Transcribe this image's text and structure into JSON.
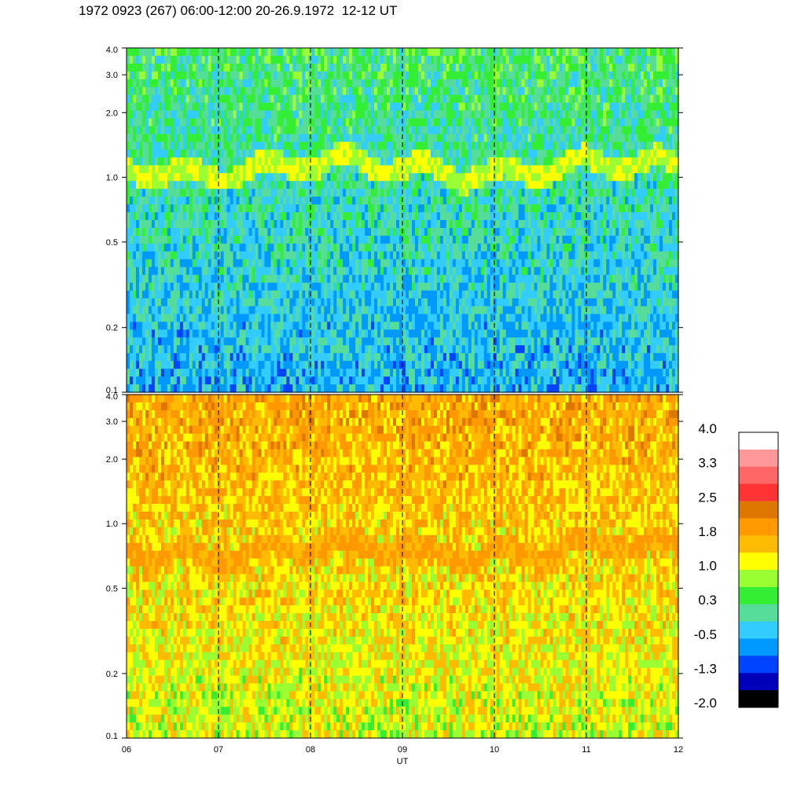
{
  "title": "1972 0923 (267) 06:00-12:00 20-26.9.1972  12-12 UT",
  "chart_data": [
    {
      "type": "heatmap",
      "name": "upper-panel",
      "x_range": [
        "06",
        "12"
      ],
      "y_scale": "log",
      "y_range": [
        0.1,
        4.0
      ],
      "y_ticks": [
        "4.0",
        "3.0",
        "2.0",
        "1.0",
        "0.5",
        "0.2",
        "0.1"
      ],
      "x_ticks": [
        "06",
        "07",
        "08",
        "09",
        "10",
        "11",
        "12"
      ],
      "xlabel": "",
      "dashed_lines_at": [
        "07",
        "08",
        "09",
        "10",
        "11"
      ],
      "band": {
        "y_center": 1.1,
        "level": 1.0
      },
      "background_levels": {
        "high": 0.3,
        "low": -0.5
      }
    },
    {
      "type": "heatmap",
      "name": "lower-panel",
      "x_range": [
        "06",
        "12"
      ],
      "y_scale": "log",
      "y_range": [
        0.1,
        4.0
      ],
      "y_ticks": [
        "4.0",
        "3.0",
        "2.0",
        "1.0",
        "0.5",
        "0.2",
        "0.1"
      ],
      "x_ticks": [
        "06",
        "07",
        "08",
        "09",
        "10",
        "11",
        "12"
      ],
      "xlabel": "UT",
      "dashed_lines_at": [
        "07",
        "08",
        "09",
        "10",
        "11"
      ],
      "band": {
        "y_center": 0.75,
        "level": 1.8
      },
      "background_levels": {
        "high": 1.8,
        "low": 1.0
      }
    }
  ],
  "colorbar": {
    "tick_labels": [
      "4.0",
      "3.3",
      "2.5",
      "1.8",
      "1.0",
      "0.3",
      "-0.5",
      "-1.3",
      "-2.0"
    ],
    "colors_top_to_bottom": [
      "#ffffff",
      "#ff9999",
      "#ff6666",
      "#ff3333",
      "#dd7700",
      "#ff9900",
      "#ffbb00",
      "#ffff00",
      "#99ff33",
      "#33ee33",
      "#55dd99",
      "#33ccff",
      "#0099ff",
      "#0044ff",
      "#0000bb",
      "#000000"
    ]
  }
}
